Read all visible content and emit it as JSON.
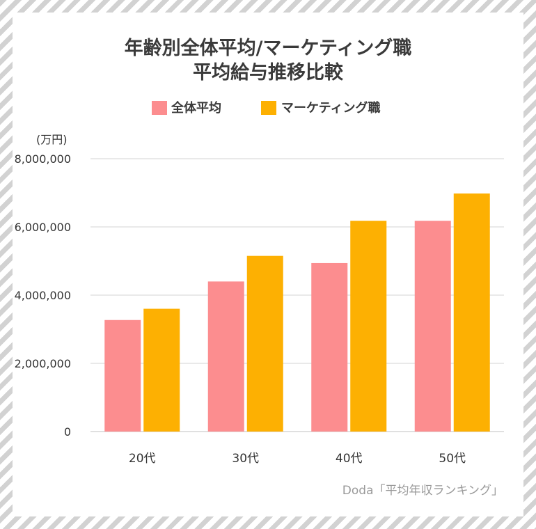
{
  "chart_data": {
    "type": "bar",
    "title_lines": [
      "年齢別全体平均/マーケティング職",
      "平均給与推移比較"
    ],
    "unit": "(万円)",
    "categories": [
      "20代",
      "30代",
      "40代",
      "50代"
    ],
    "series": [
      {
        "name": "全体平均",
        "color": "#fc8d8f",
        "values": [
          3270000,
          4400000,
          4940000,
          6180000
        ]
      },
      {
        "name": "マーケティング職",
        "color": "#fdb002",
        "values": [
          3600000,
          5150000,
          6180000,
          6980000
        ]
      }
    ],
    "ylim": [
      0,
      8000000
    ],
    "yticks": [
      0,
      2000000,
      4000000,
      6000000,
      8000000
    ],
    "ytick_labels": [
      "0",
      "2,000,000",
      "4,000,000",
      "6,000,000",
      "8,000,000"
    ],
    "grid": true,
    "legend_position": "top-center",
    "source": "Doda「平均年収ランキング」"
  }
}
